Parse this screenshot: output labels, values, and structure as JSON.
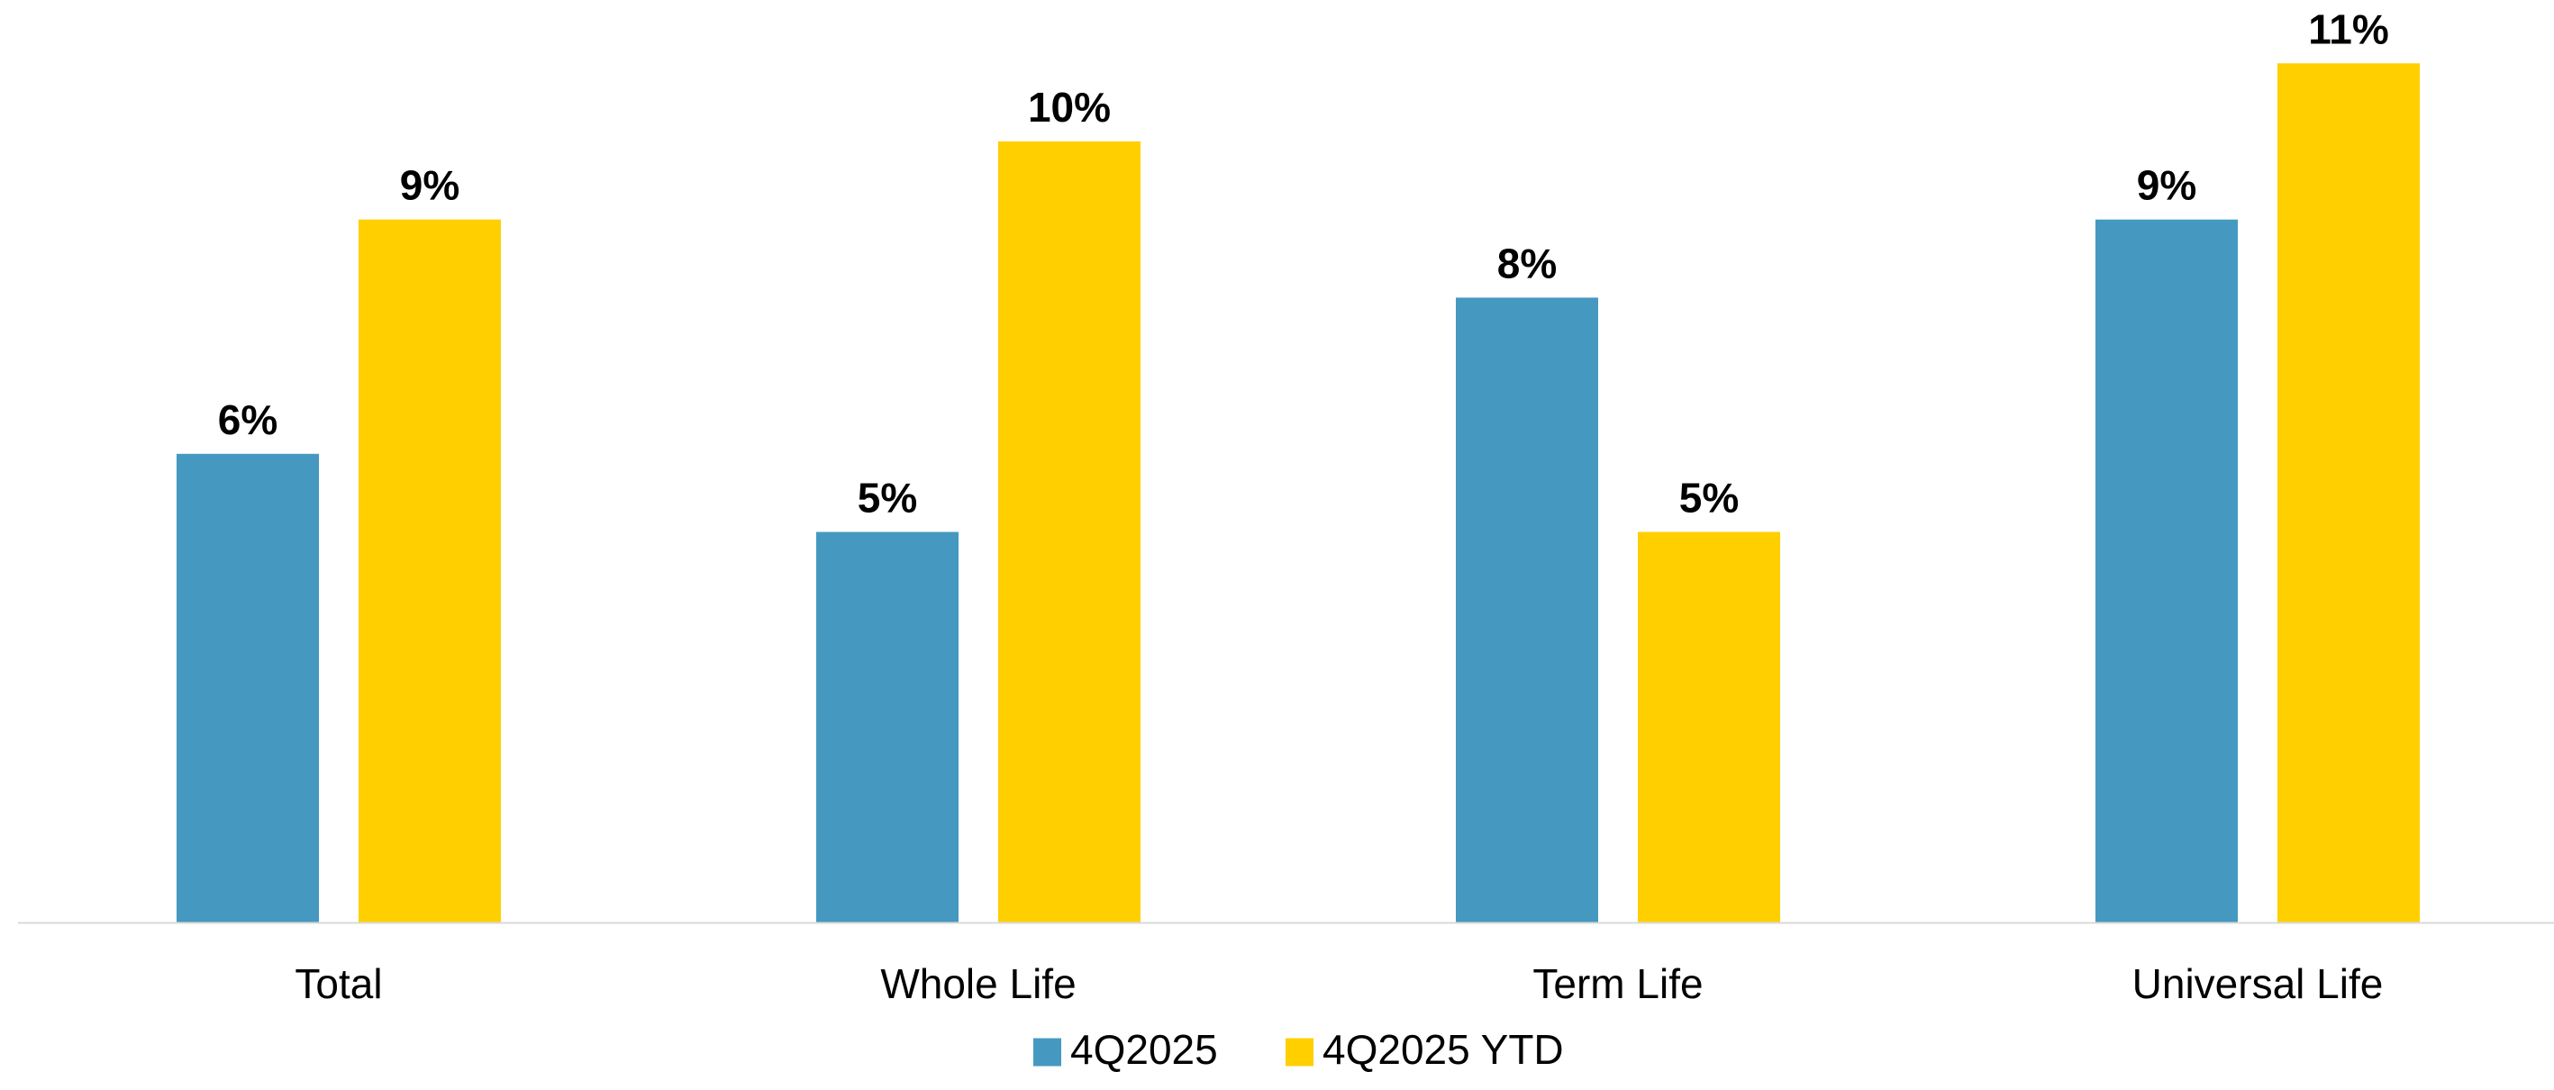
{
  "chart_data": {
    "type": "bar",
    "categories": [
      "Total",
      "Whole Life",
      "Term Life",
      "Universal Life"
    ],
    "series": [
      {
        "name": "4Q2025",
        "values": [
          6,
          5,
          8,
          9
        ],
        "labels": [
          "6%",
          "5%",
          "8%",
          "9%"
        ],
        "color": "#4599C0"
      },
      {
        "name": "4Q2025 YTD",
        "values": [
          9,
          10,
          5,
          11
        ],
        "labels": [
          "9%",
          "10%",
          "5%",
          "11%"
        ],
        "color": "#FFCF00"
      }
    ],
    "title": "",
    "xlabel": "",
    "ylabel": "",
    "ylim": [
      0,
      11
    ],
    "grid": false,
    "legend_position": "bottom",
    "baseline_color": "#D9D9D9"
  }
}
